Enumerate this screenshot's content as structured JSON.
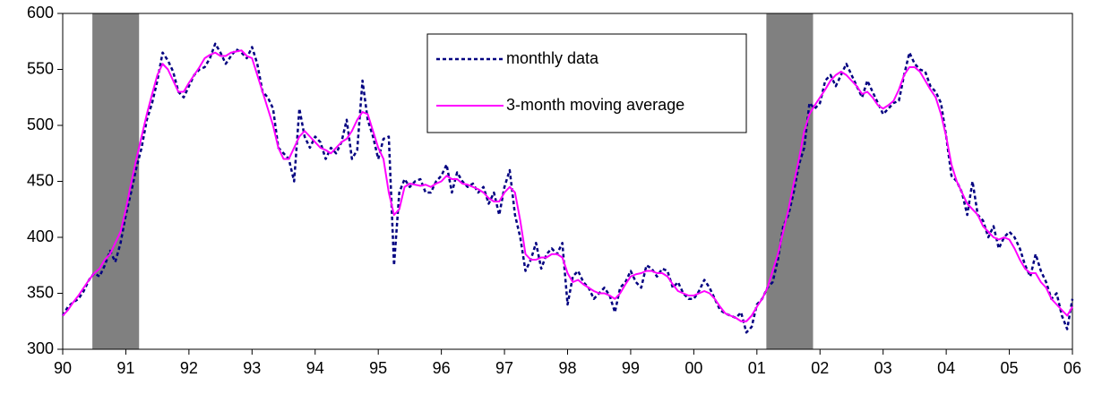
{
  "chart_data": {
    "type": "line",
    "xlim": [
      1990,
      2006
    ],
    "xticks": [
      {
        "value": 1990,
        "label": "90"
      },
      {
        "value": 1991,
        "label": "91"
      },
      {
        "value": 1992,
        "label": "92"
      },
      {
        "value": 1993,
        "label": "93"
      },
      {
        "value": 1994,
        "label": "94"
      },
      {
        "value": 1995,
        "label": "95"
      },
      {
        "value": 1996,
        "label": "96"
      },
      {
        "value": 1997,
        "label": "97"
      },
      {
        "value": 1998,
        "label": "98"
      },
      {
        "value": 1999,
        "label": "99"
      },
      {
        "value": 2000,
        "label": "00"
      },
      {
        "value": 2001,
        "label": "01"
      },
      {
        "value": 2002,
        "label": "02"
      },
      {
        "value": 2003,
        "label": "03"
      },
      {
        "value": 2004,
        "label": "04"
      },
      {
        "value": 2005,
        "label": "05"
      },
      {
        "value": 2006,
        "label": "06"
      }
    ],
    "ylim": [
      300,
      600
    ],
    "yticks": [
      300,
      350,
      400,
      450,
      500,
      550,
      600
    ],
    "shaded_periods": [
      [
        1990.47,
        1991.21
      ],
      [
        2001.15,
        2001.89
      ]
    ],
    "shade_color": "#808080",
    "legend": "top-center",
    "x": [
      1990,
      1990.083,
      1990.167,
      1990.25,
      1990.333,
      1990.417,
      1990.5,
      1990.583,
      1990.667,
      1990.75,
      1990.833,
      1990.917,
      1991,
      1991.083,
      1991.167,
      1991.25,
      1991.333,
      1991.417,
      1991.5,
      1991.583,
      1991.667,
      1991.75,
      1991.833,
      1991.917,
      1992,
      1992.083,
      1992.167,
      1992.25,
      1992.333,
      1992.417,
      1992.5,
      1992.583,
      1992.667,
      1992.75,
      1992.833,
      1992.917,
      1993,
      1993.083,
      1993.167,
      1993.25,
      1993.333,
      1993.417,
      1993.5,
      1993.583,
      1993.667,
      1993.75,
      1993.833,
      1993.917,
      1994,
      1994.083,
      1994.167,
      1994.25,
      1994.333,
      1994.417,
      1994.5,
      1994.583,
      1994.667,
      1994.75,
      1994.833,
      1994.917,
      1995,
      1995.083,
      1995.167,
      1995.25,
      1995.333,
      1995.417,
      1995.5,
      1995.583,
      1995.667,
      1995.75,
      1995.833,
      1995.917,
      1996,
      1996.083,
      1996.167,
      1996.25,
      1996.333,
      1996.417,
      1996.5,
      1996.583,
      1996.667,
      1996.75,
      1996.833,
      1996.917,
      1997,
      1997.083,
      1997.167,
      1997.25,
      1997.333,
      1997.417,
      1997.5,
      1997.583,
      1997.667,
      1997.75,
      1997.833,
      1997.917,
      1998,
      1998.083,
      1998.167,
      1998.25,
      1998.333,
      1998.417,
      1998.5,
      1998.583,
      1998.667,
      1998.75,
      1998.833,
      1998.917,
      1999,
      1999.083,
      1999.167,
      1999.25,
      1999.333,
      1999.417,
      1999.5,
      1999.583,
      1999.667,
      1999.75,
      1999.833,
      1999.917,
      2000,
      2000.083,
      2000.167,
      2000.25,
      2000.333,
      2000.417,
      2000.5,
      2000.583,
      2000.667,
      2000.75,
      2000.833,
      2000.917,
      2001,
      2001.083,
      2001.167,
      2001.25,
      2001.333,
      2001.417,
      2001.5,
      2001.583,
      2001.667,
      2001.75,
      2001.833,
      2001.917,
      2002,
      2002.083,
      2002.167,
      2002.25,
      2002.333,
      2002.417,
      2002.5,
      2002.583,
      2002.667,
      2002.75,
      2002.833,
      2002.917,
      2003,
      2003.083,
      2003.167,
      2003.25,
      2003.333,
      2003.417,
      2003.5,
      2003.583,
      2003.667,
      2003.75,
      2003.833,
      2003.917,
      2004,
      2004.083,
      2004.167,
      2004.25,
      2004.333,
      2004.417,
      2004.5,
      2004.583,
      2004.667,
      2004.75,
      2004.833,
      2004.917,
      2005,
      2005.083,
      2005.167,
      2005.25,
      2005.333,
      2005.417,
      2005.5,
      2005.583,
      2005.667,
      2005.75,
      2005.833,
      2005.917,
      2006
    ],
    "series": [
      {
        "name": "monthly data",
        "color": "#000080",
        "dashed": true,
        "values": [
          330,
          338,
          342,
          345,
          352,
          362,
          368,
          365,
          375,
          388,
          378,
          395,
          420,
          440,
          462,
          480,
          505,
          520,
          540,
          565,
          558,
          548,
          530,
          525,
          535,
          545,
          550,
          552,
          560,
          573,
          565,
          555,
          562,
          568,
          565,
          560,
          570,
          555,
          530,
          525,
          515,
          480,
          475,
          470,
          450,
          515,
          490,
          480,
          490,
          485,
          470,
          480,
          475,
          485,
          505,
          470,
          478,
          540,
          505,
          490,
          470,
          488,
          490,
          375,
          440,
          452,
          445,
          450,
          452,
          440,
          440,
          450,
          455,
          465,
          440,
          458,
          450,
          445,
          448,
          440,
          445,
          430,
          440,
          420,
          445,
          460,
          420,
          400,
          370,
          380,
          395,
          372,
          385,
          390,
          385,
          395,
          340,
          365,
          370,
          360,
          355,
          345,
          350,
          355,
          348,
          333,
          355,
          360,
          370,
          360,
          355,
          375,
          372,
          365,
          372,
          370,
          355,
          360,
          350,
          345,
          345,
          352,
          362,
          355,
          345,
          335,
          332,
          330,
          328,
          333,
          315,
          320,
          340,
          345,
          355,
          360,
          380,
          410,
          420,
          440,
          465,
          480,
          520,
          515,
          520,
          540,
          545,
          535,
          545,
          555,
          545,
          535,
          525,
          540,
          530,
          520,
          510,
          515,
          520,
          522,
          545,
          565,
          555,
          550,
          548,
          535,
          530,
          520,
          490,
          455,
          450,
          440,
          420,
          450,
          420,
          415,
          400,
          410,
          390,
          400,
          405,
          400,
          390,
          375,
          365,
          385,
          370,
          360,
          345,
          350,
          330,
          318,
          345
        ]
      },
      {
        "name": "3-month moving average",
        "color": "#ff00ff",
        "dashed": false,
        "values": [
          330,
          335,
          342,
          348,
          355,
          362,
          368,
          372,
          380,
          385,
          395,
          405,
          425,
          448,
          470,
          490,
          510,
          528,
          545,
          555,
          550,
          540,
          530,
          530,
          538,
          545,
          552,
          560,
          563,
          565,
          562,
          562,
          565,
          566,
          567,
          562,
          560,
          545,
          530,
          515,
          500,
          480,
          470,
          470,
          480,
          490,
          495,
          490,
          485,
          480,
          478,
          475,
          480,
          485,
          488,
          495,
          505,
          512,
          510,
          495,
          480,
          470,
          440,
          420,
          425,
          445,
          448,
          447,
          446,
          447,
          445,
          448,
          450,
          455,
          452,
          452,
          448,
          447,
          445,
          443,
          440,
          435,
          432,
          432,
          440,
          445,
          440,
          415,
          385,
          380,
          380,
          382,
          382,
          385,
          385,
          382,
          368,
          360,
          362,
          358,
          355,
          352,
          350,
          350,
          348,
          345,
          350,
          358,
          365,
          367,
          368,
          370,
          370,
          368,
          368,
          365,
          358,
          352,
          350,
          348,
          348,
          350,
          352,
          350,
          345,
          338,
          332,
          330,
          328,
          325,
          325,
          330,
          338,
          345,
          355,
          370,
          385,
          405,
          425,
          448,
          470,
          495,
          510,
          518,
          525,
          532,
          540,
          545,
          548,
          545,
          540,
          535,
          528,
          530,
          525,
          518,
          515,
          518,
          522,
          532,
          545,
          552,
          552,
          548,
          540,
          532,
          525,
          510,
          490,
          465,
          450,
          440,
          430,
          425,
          420,
          410,
          405,
          400,
          398,
          400,
          398,
          390,
          380,
          372,
          368,
          368,
          360,
          355,
          345,
          340,
          335,
          330,
          338
        ]
      }
    ]
  }
}
